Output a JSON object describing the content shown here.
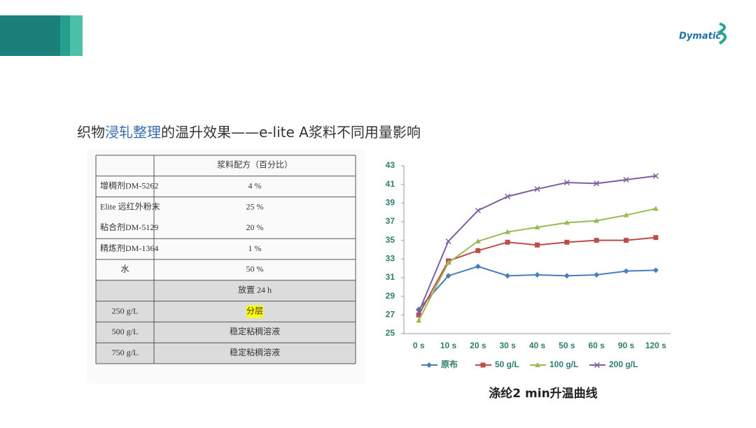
{
  "logo": "Dymatic",
  "title": {
    "parts": [
      "织物",
      "浸轧整理",
      "的温升效果——e-lite A浆料不同用量影响"
    ],
    "highlight_color": "#3a6db0"
  },
  "table": {
    "rows": [
      [
        null,
        "浆料配方（百分比）"
      ],
      [
        "增稠剂DM-5262",
        "4 %"
      ],
      [
        "Elite 远红外粉末",
        "25 %"
      ],
      [
        "粘合剂DM-5129",
        "20 %"
      ],
      [
        "精炼剂DM-1364",
        "1 %"
      ],
      [
        "水",
        "50 %"
      ],
      [
        null,
        "放置 24 h"
      ],
      [
        "250 g/L",
        "分层"
      ],
      [
        "500 g/L",
        "稳定粘稠溶液"
      ],
      [
        "750 g/L",
        "稳定粘稠溶液"
      ]
    ]
  },
  "chart_data": {
    "type": "line",
    "title": "涤纶2 min升温曲线",
    "categories": [
      "0 s",
      "10 s",
      "20 s",
      "30 s",
      "40 s",
      "50 s",
      "60 s",
      "90 s",
      "120 s"
    ],
    "ylim": [
      25,
      43
    ],
    "yticks": [
      25,
      27,
      29,
      31,
      33,
      35,
      37,
      39,
      41,
      43
    ],
    "series": [
      {
        "name": "原布",
        "color": "#4a7ebb",
        "marker": "diamond",
        "values": [
          27.6,
          31.2,
          32.2,
          31.2,
          31.3,
          31.2,
          31.3,
          31.7,
          31.8
        ]
      },
      {
        "name": "50 g/L",
        "color": "#be4b48",
        "marker": "square",
        "values": [
          27.0,
          32.8,
          33.9,
          34.8,
          34.5,
          34.8,
          35.0,
          35.0,
          35.3
        ]
      },
      {
        "name": "100 g/L",
        "color": "#98b954",
        "marker": "triangle",
        "values": [
          26.4,
          32.6,
          34.9,
          35.9,
          36.4,
          36.9,
          37.1,
          37.7,
          38.4
        ]
      },
      {
        "name": "200 g/L",
        "color": "#7d60a0",
        "marker": "x",
        "values": [
          27.3,
          34.9,
          38.2,
          39.7,
          40.5,
          41.2,
          41.1,
          41.5,
          41.9
        ]
      }
    ]
  }
}
